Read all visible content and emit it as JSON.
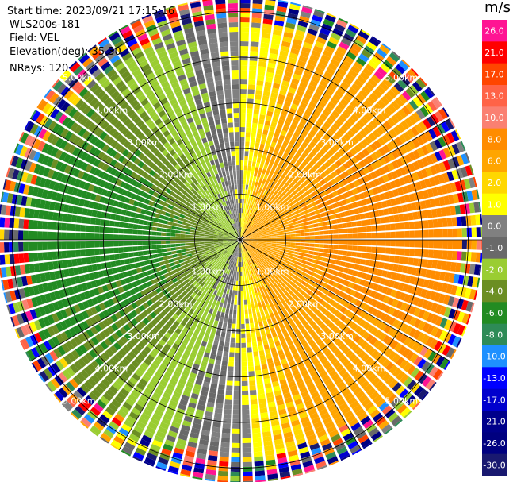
{
  "info": {
    "start_time": "Start time: 2023/09/21 17:15:16",
    "site": "WLS200s-181",
    "field": "Field: VEL",
    "elevation": "Elevation(deg): 35.30",
    "nrays": "NRays: 120"
  },
  "colorbar": {
    "unit": "m/s",
    "bins": [
      {
        "label": "26.0",
        "color": "#ff1493"
      },
      {
        "label": "21.0",
        "color": "#ff0000"
      },
      {
        "label": "17.0",
        "color": "#ff4500"
      },
      {
        "label": "13.0",
        "color": "#ff6347"
      },
      {
        "label": "10.0",
        "color": "#fa8072"
      },
      {
        "label": "8.0",
        "color": "#ff8c00"
      },
      {
        "label": "6.0",
        "color": "#ffa500"
      },
      {
        "label": "2.0",
        "color": "#ffd700"
      },
      {
        "label": "1.0",
        "color": "#ffff00"
      },
      {
        "label": "0.0",
        "color": "#808080"
      },
      {
        "label": "-1.0",
        "color": "#696969"
      },
      {
        "label": "-2.0",
        "color": "#9acd32"
      },
      {
        "label": "-4.0",
        "color": "#6b8e23"
      },
      {
        "label": "-6.0",
        "color": "#228b22"
      },
      {
        "label": "-8.0",
        "color": "#2e8b57"
      },
      {
        "label": "-10.0",
        "color": "#1e90ff"
      },
      {
        "label": "-13.0",
        "color": "#0000ff"
      },
      {
        "label": "-17.0",
        "color": "#0000cd"
      },
      {
        "label": "-21.0",
        "color": "#00008b"
      },
      {
        "label": "-26.0",
        "color": "#000080"
      },
      {
        "label": "-30.0",
        "color": "#191970"
      }
    ]
  },
  "chart_data": {
    "type": "heatmap",
    "projection": "polar PPI scan",
    "field": "VEL",
    "units": "m/s",
    "nrays": 120,
    "range_rings_km": [
      1.0,
      2.0,
      3.0,
      4.0,
      5.0
    ],
    "ring_labels": [
      "1.00km",
      "2.00km",
      "3.00km",
      "4.00km",
      "5.00km"
    ],
    "spokes_deg": [
      0,
      30,
      60,
      90,
      120,
      150,
      180,
      210,
      240,
      270,
      300,
      330
    ],
    "max_range_km": 6.0,
    "velocity_pattern": {
      "toward_azimuth_deg": 270,
      "away_azimuth_deg": 90,
      "peak_toward_ms": -7,
      "peak_away_ms": 7,
      "noise_beyond_km": 4.6
    },
    "colorbar_ticks": [
      26.0,
      21.0,
      17.0,
      13.0,
      10.0,
      8.0,
      6.0,
      2.0,
      1.0,
      0.0,
      -1.0,
      -2.0,
      -4.0,
      -6.0,
      -8.0,
      -10.0,
      -13.0,
      -17.0,
      -21.0,
      -26.0,
      -30.0
    ]
  }
}
